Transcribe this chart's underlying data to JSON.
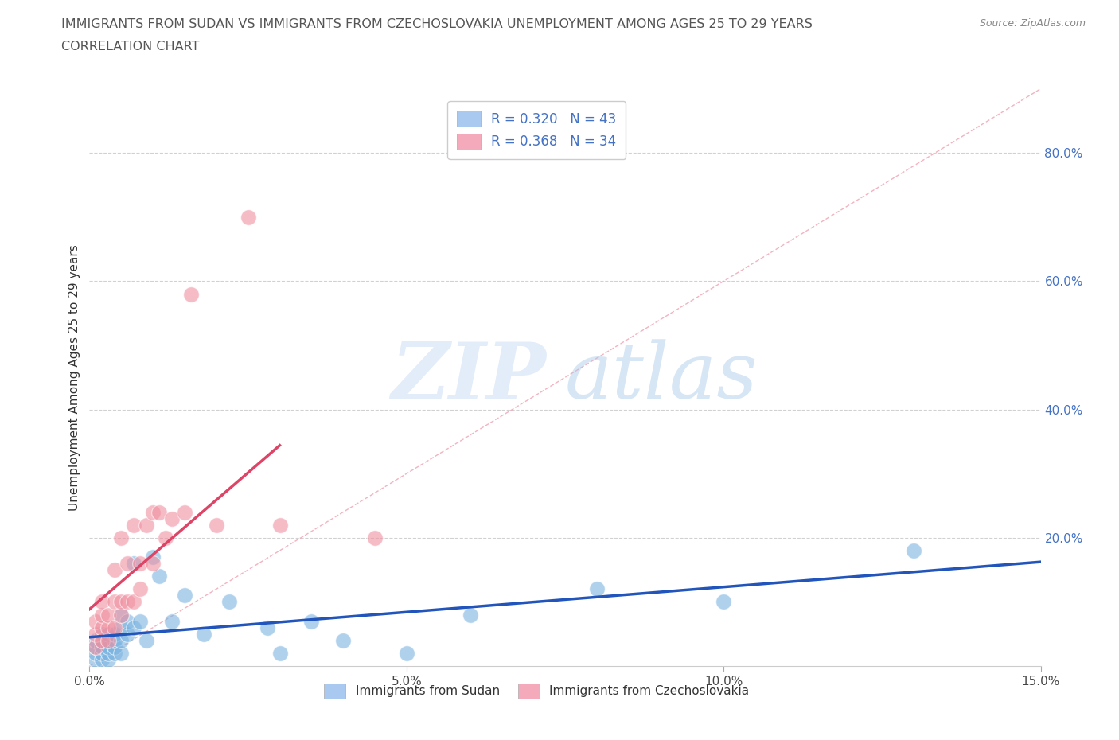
{
  "title_line1": "IMMIGRANTS FROM SUDAN VS IMMIGRANTS FROM CZECHOSLOVAKIA UNEMPLOYMENT AMONG AGES 25 TO 29 YEARS",
  "title_line2": "CORRELATION CHART",
  "source": "Source: ZipAtlas.com",
  "ylabel": "Unemployment Among Ages 25 to 29 years",
  "xlim": [
    0.0,
    0.15
  ],
  "ylim": [
    0.0,
    0.9
  ],
  "xtick_values": [
    0.0,
    0.05,
    0.1,
    0.15
  ],
  "xtick_labels": [
    "0.0%",
    "5.0%",
    "10.0%",
    "15.0%"
  ],
  "ytick_values": [
    0.2,
    0.4,
    0.6,
    0.8
  ],
  "ytick_labels": [
    "20.0%",
    "40.0%",
    "60.0%",
    "80.0%"
  ],
  "legend1_label": "R = 0.320   N = 43",
  "legend2_label": "R = 0.368   N = 34",
  "legend1_color": "#aac9f0",
  "legend2_color": "#f5aabb",
  "color_sudan": "#7ab3e0",
  "color_czech": "#f090a0",
  "line_color_sudan": "#2255bb",
  "line_color_czech": "#dd4466",
  "diagonal_color": "#f0a0b0",
  "grid_color": "#cccccc",
  "background_color": "#ffffff",
  "title_color": "#555555",
  "source_color": "#888888",
  "ylabel_color": "#333333",
  "right_tick_color": "#4472c4",
  "sudan_x": [
    0.001,
    0.001,
    0.001,
    0.001,
    0.002,
    0.002,
    0.002,
    0.002,
    0.002,
    0.003,
    0.003,
    0.003,
    0.003,
    0.003,
    0.004,
    0.004,
    0.004,
    0.004,
    0.005,
    0.005,
    0.005,
    0.005,
    0.006,
    0.006,
    0.007,
    0.007,
    0.008,
    0.009,
    0.01,
    0.011,
    0.013,
    0.015,
    0.018,
    0.022,
    0.028,
    0.03,
    0.035,
    0.04,
    0.05,
    0.06,
    0.08,
    0.1,
    0.13
  ],
  "sudan_y": [
    0.01,
    0.02,
    0.03,
    0.04,
    0.01,
    0.02,
    0.03,
    0.04,
    0.05,
    0.01,
    0.02,
    0.03,
    0.04,
    0.05,
    0.02,
    0.03,
    0.04,
    0.05,
    0.02,
    0.04,
    0.06,
    0.08,
    0.05,
    0.07,
    0.06,
    0.16,
    0.07,
    0.04,
    0.17,
    0.14,
    0.07,
    0.11,
    0.05,
    0.1,
    0.06,
    0.02,
    0.07,
    0.04,
    0.02,
    0.08,
    0.12,
    0.1,
    0.18
  ],
  "czech_x": [
    0.001,
    0.001,
    0.001,
    0.002,
    0.002,
    0.002,
    0.002,
    0.003,
    0.003,
    0.003,
    0.004,
    0.004,
    0.004,
    0.005,
    0.005,
    0.005,
    0.006,
    0.006,
    0.007,
    0.007,
    0.008,
    0.008,
    0.009,
    0.01,
    0.01,
    0.011,
    0.012,
    0.013,
    0.015,
    0.016,
    0.02,
    0.025,
    0.03,
    0.045
  ],
  "czech_y": [
    0.03,
    0.05,
    0.07,
    0.04,
    0.06,
    0.08,
    0.1,
    0.04,
    0.06,
    0.08,
    0.06,
    0.1,
    0.15,
    0.08,
    0.1,
    0.2,
    0.1,
    0.16,
    0.1,
    0.22,
    0.12,
    0.16,
    0.22,
    0.24,
    0.16,
    0.24,
    0.2,
    0.23,
    0.24,
    0.58,
    0.22,
    0.7,
    0.22,
    0.2
  ]
}
